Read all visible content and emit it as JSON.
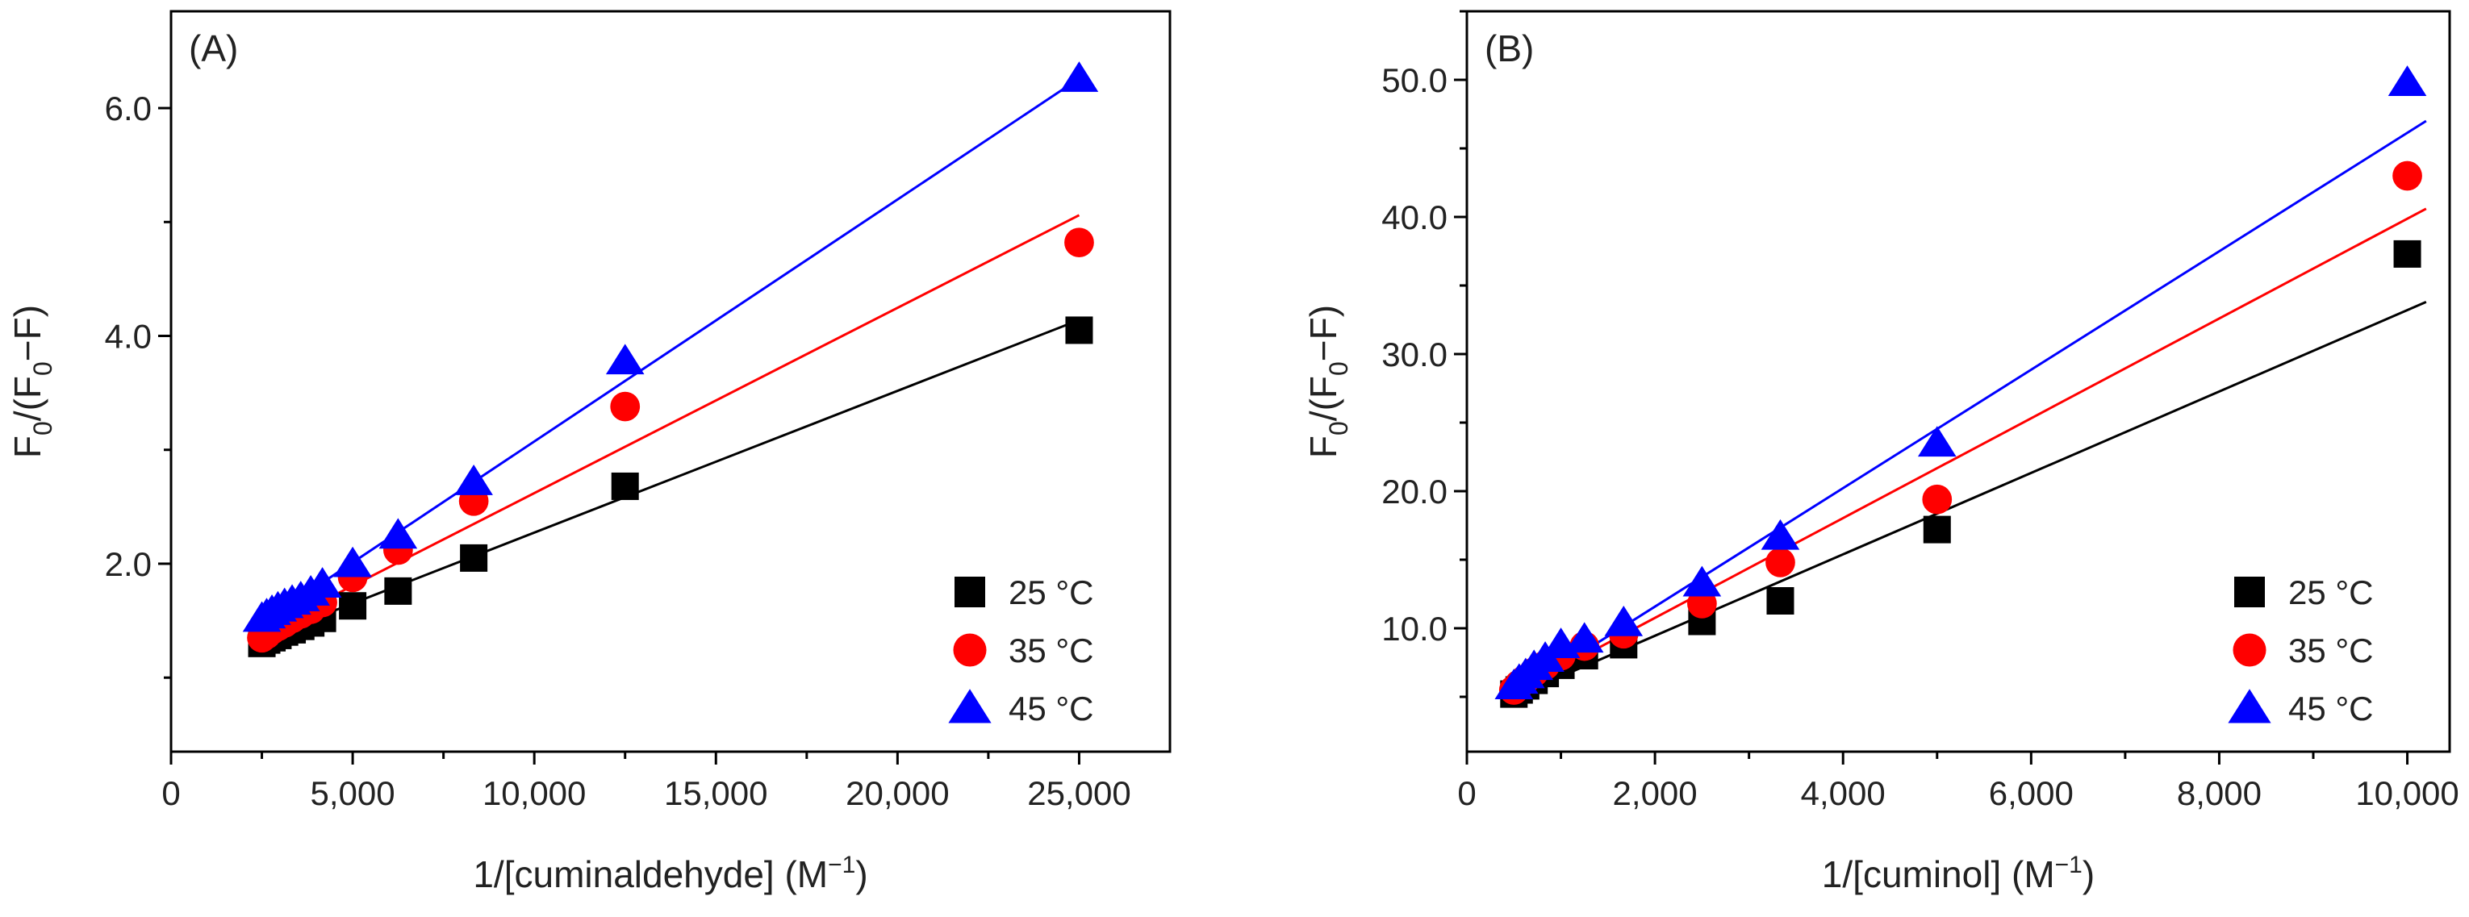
{
  "chart_data": [
    {
      "type": "scatter",
      "panel_label": "(A)",
      "xlabel": {
        "main": "1/[cuminaldehyde] (M",
        "sup": "−1",
        "close": ")"
      },
      "ylabel": {
        "parts": [
          "F",
          "0",
          "/(F",
          "0",
          "−F)"
        ]
      },
      "xlim": [
        0,
        27500
      ],
      "ylim": [
        0.35,
        6.85
      ],
      "xticks": [
        0,
        5000,
        10000,
        15000,
        20000,
        25000
      ],
      "xtick_labels": [
        "0",
        "5,000",
        "10,000",
        "15,000",
        "20,000",
        "25,000"
      ],
      "yticks": [
        2.0,
        4.0,
        6.0
      ],
      "ytick_labels": [
        "2.0",
        "4.0",
        "6.0"
      ],
      "grid": false,
      "legend_position": "bottom-right",
      "series": [
        {
          "name": "25 °C",
          "color": "#000000",
          "marker": "square",
          "x": [
            2500,
            2632,
            2778,
            2941,
            3125,
            3333,
            3571,
            3846,
            4167,
            5000,
            6250,
            8333,
            12500,
            25000
          ],
          "y": [
            1.3,
            1.33,
            1.35,
            1.37,
            1.4,
            1.42,
            1.45,
            1.48,
            1.52,
            1.63,
            1.76,
            2.05,
            2.68,
            4.05
          ],
          "fit": {
            "x": [
              2500,
              25000
            ],
            "y": [
              1.34,
              4.14
            ]
          }
        },
        {
          "name": "35 °C",
          "color": "#ff0000",
          "marker": "circle",
          "x": [
            2500,
            2632,
            2778,
            2941,
            3125,
            3333,
            3571,
            3846,
            4167,
            5000,
            6250,
            8333,
            12500,
            25000
          ],
          "y": [
            1.35,
            1.38,
            1.42,
            1.45,
            1.48,
            1.52,
            1.56,
            1.6,
            1.66,
            1.88,
            2.12,
            2.55,
            3.38,
            4.82
          ],
          "fit": {
            "x": [
              2500,
              25000
            ],
            "y": [
              1.4,
              5.06
            ]
          }
        },
        {
          "name": "45 °C",
          "color": "#0000ff",
          "marker": "triangle",
          "x": [
            2500,
            2632,
            2778,
            2941,
            3125,
            3333,
            3571,
            3846,
            4167,
            5000,
            6250,
            8333,
            12500,
            25000
          ],
          "y": [
            1.52,
            1.55,
            1.58,
            1.61,
            1.64,
            1.67,
            1.7,
            1.75,
            1.82,
            2.0,
            2.25,
            2.72,
            3.78,
            6.26
          ],
          "fit": {
            "x": [
              2500,
              25000
            ],
            "y": [
              1.48,
              6.26
            ]
          }
        }
      ]
    },
    {
      "type": "scatter",
      "panel_label": "(B)",
      "xlabel": {
        "main": "1/[cuminol] (M",
        "sup": "−1",
        "close": ")"
      },
      "ylabel": {
        "parts": [
          "F",
          "0",
          "/(F",
          "0",
          "−F)"
        ]
      },
      "xlim": [
        0,
        10450
      ],
      "ylim": [
        1,
        55
      ],
      "xticks": [
        0,
        2000,
        4000,
        6000,
        8000,
        10000
      ],
      "xtick_labels": [
        "0",
        "2,000",
        "4,000",
        "6,000",
        "8,000",
        "10,000"
      ],
      "yticks": [
        10,
        20,
        30,
        40,
        50
      ],
      "ytick_labels": [
        "10.0",
        "20.0",
        "30.0",
        "40.0",
        "50.0"
      ],
      "grid": false,
      "legend_position": "bottom-right",
      "series": [
        {
          "name": "25 °C",
          "color": "#000000",
          "marker": "square",
          "x": [
            500,
            556,
            625,
            714,
            833,
            1000,
            1250,
            1667,
            2500,
            3333,
            5000,
            10000
          ],
          "y": [
            5.2,
            5.5,
            5.8,
            6.2,
            6.7,
            7.3,
            8.0,
            8.8,
            10.5,
            12.0,
            17.2,
            37.3
          ],
          "fit": {
            "x": [
              500,
              10200
            ],
            "y": [
              5.0,
              33.8
            ]
          }
        },
        {
          "name": "35 °C",
          "color": "#ff0000",
          "marker": "circle",
          "x": [
            500,
            556,
            625,
            714,
            833,
            1000,
            1250,
            1667,
            2500,
            3333,
            5000,
            10000
          ],
          "y": [
            5.5,
            5.9,
            6.3,
            6.8,
            7.3,
            8.0,
            8.7,
            9.6,
            11.8,
            14.8,
            19.4,
            43.0
          ],
          "fit": {
            "x": [
              500,
              10200
            ],
            "y": [
              5.3,
              40.6
            ]
          }
        },
        {
          "name": "45 °C",
          "color": "#0000ff",
          "marker": "triangle",
          "x": [
            500,
            556,
            625,
            714,
            833,
            1000,
            1250,
            1667,
            2500,
            3333,
            5000,
            10000
          ],
          "y": [
            5.8,
            6.2,
            6.6,
            7.2,
            7.8,
            8.8,
            9.2,
            10.4,
            13.3,
            16.7,
            23.5,
            49.8
          ],
          "fit": {
            "x": [
              500,
              10200
            ],
            "y": [
              5.1,
              47.0
            ]
          }
        }
      ]
    }
  ]
}
